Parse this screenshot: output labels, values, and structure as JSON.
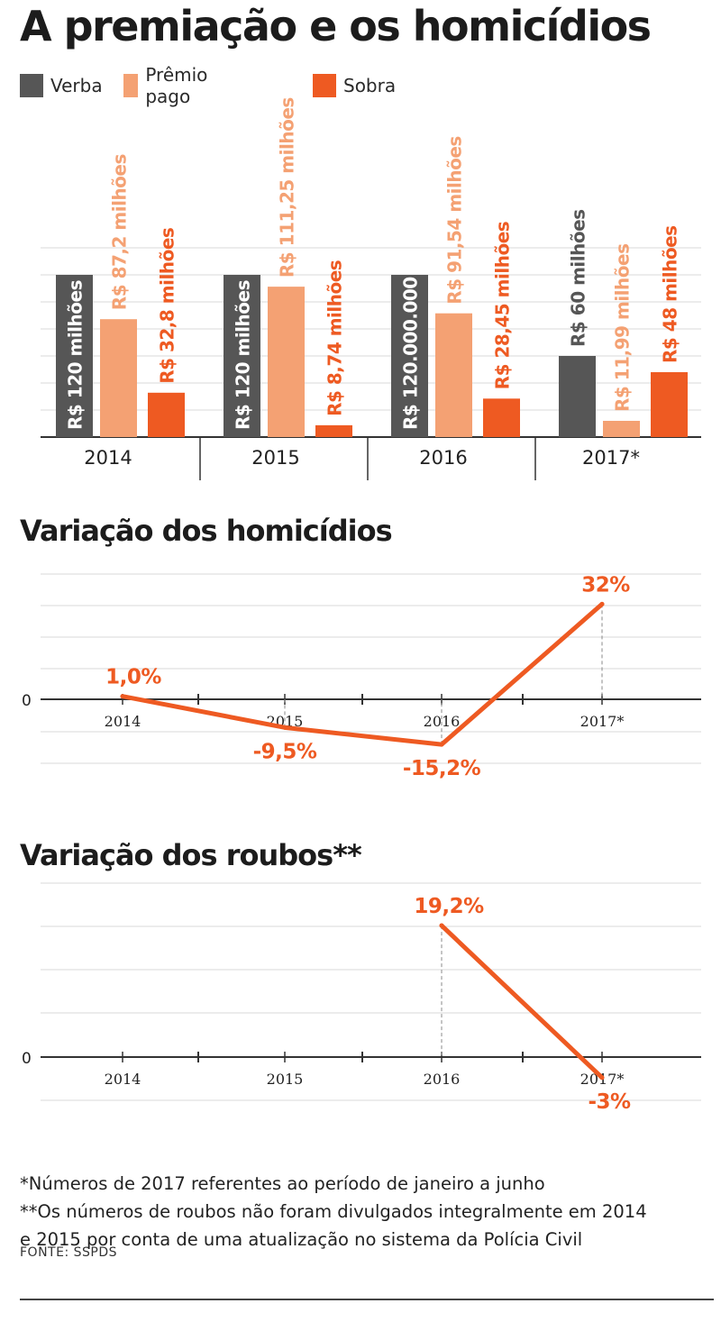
{
  "title": "A premiação e os homicídios",
  "legend": [
    {
      "label": "Verba",
      "color": "#565656"
    },
    {
      "label": "Prêmio pago",
      "color": "#f4a173"
    },
    {
      "label": "Sobra",
      "color": "#ee5a22"
    }
  ],
  "chart_data": [
    {
      "type": "bar",
      "categories": [
        "2014",
        "2015",
        "2016",
        "2017*"
      ],
      "series": [
        {
          "name": "Verba",
          "values": [
            120,
            120,
            120,
            60
          ],
          "labels": [
            "R$ 120 milhões",
            "R$ 120 milhões",
            "R$ 120.000.000",
            "R$ 60 milhões"
          ]
        },
        {
          "name": "Prêmio pago",
          "values": [
            87.2,
            111.25,
            91.54,
            11.99
          ],
          "labels": [
            "R$ 87,2 milhões",
            "R$ 111,25 milhões",
            "R$ 91,54 milhões",
            "R$ 11,99 milhões"
          ]
        },
        {
          "name": "Sobra",
          "values": [
            32.8,
            8.74,
            28.45,
            48
          ],
          "labels": [
            "R$ 32,8 milhões",
            "R$ 8,74 milhões",
            "R$ 28,45 milhões",
            "R$ 48 milhões"
          ]
        }
      ],
      "ylim": [
        0,
        140
      ],
      "grid": true
    },
    {
      "type": "line",
      "title": "Variação dos homicídios",
      "categories": [
        "2014",
        "2015",
        "2016",
        "2017*"
      ],
      "series": [
        {
          "values": [
            1.0,
            -9.5,
            -15.2,
            32
          ],
          "labels": [
            "1,0%",
            "-9,5%",
            "-15,2%",
            "32%"
          ]
        }
      ],
      "zero_label": "0",
      "ylim": [
        -22,
        45
      ],
      "grid": true
    },
    {
      "type": "line",
      "title": "Variação dos roubos**",
      "categories": [
        "2014",
        "2015",
        "2016",
        "2017*"
      ],
      "series": [
        {
          "values": [
            null,
            null,
            19.2,
            -3
          ],
          "labels": [
            null,
            null,
            "19,2%",
            "-3%"
          ]
        }
      ],
      "zero_label": "0",
      "ylim": [
        -9,
        25
      ],
      "grid": true
    }
  ],
  "notes": [
    "*Números de 2017 referentes ao período de janeiro a junho",
    "**Os números de roubos não foram divulgados integralmente em 2014",
    "e 2015 por conta de uma atualização no sistema da Polícia Civil"
  ],
  "source": "FONTE: SSPDS",
  "colors": {
    "accent": "#ee5a22",
    "verba": "#565656",
    "premio": "#f4a173",
    "grid": "#d9d9d9",
    "axis": "#333333"
  }
}
